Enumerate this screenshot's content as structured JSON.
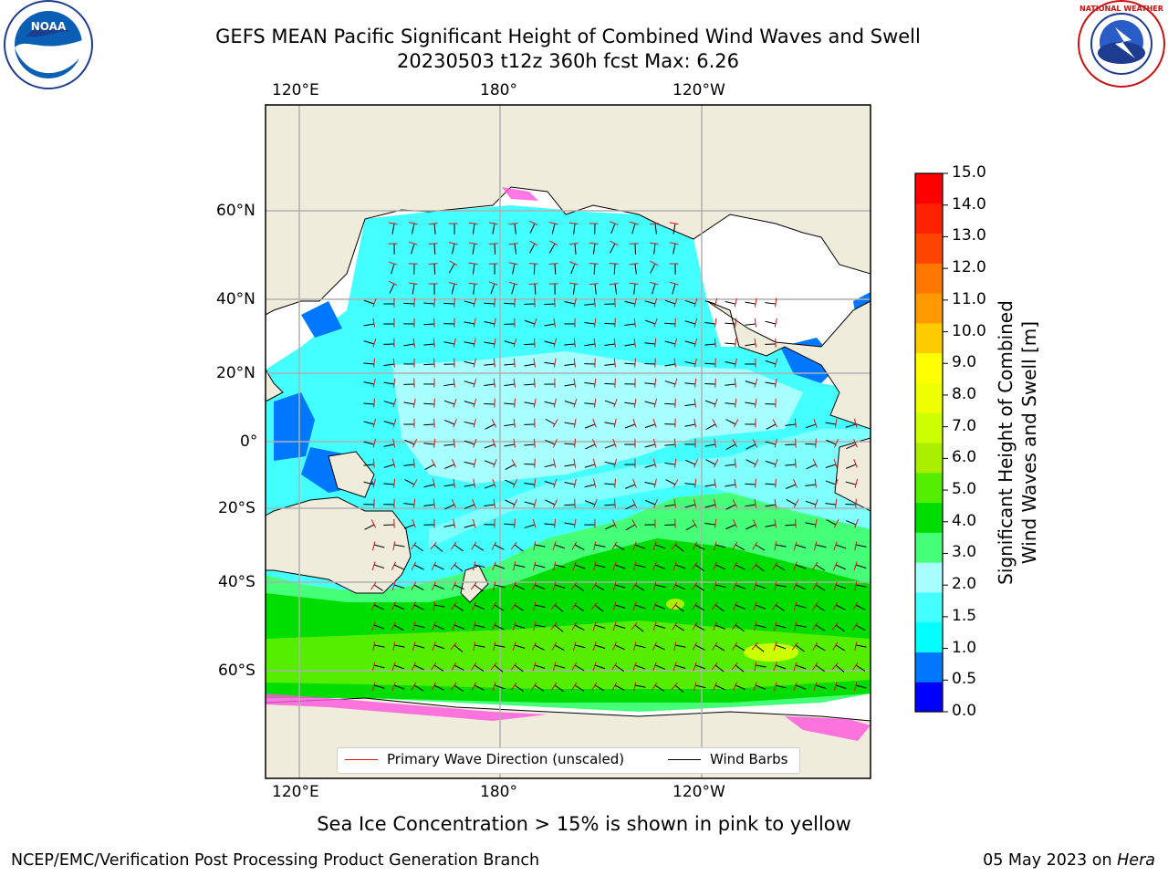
{
  "title": "GEFS MEAN Pacific Significant Height of Combined Wind Waves and Swell",
  "subtitle": "20230503 t12z 360h fcst   Max: 6.26",
  "logos": {
    "left": "NOAA",
    "right": "NATIONAL WEATHER SERVICE"
  },
  "map": {
    "lon_ticks_top": [
      "120°E",
      "180°",
      "120°W"
    ],
    "lon_ticks_bottom": [
      "120°E",
      "180°",
      "120°W"
    ],
    "lat_ticks": [
      "60°N",
      "40°N",
      "20°N",
      "0°",
      "20°S",
      "40°S",
      "60°S"
    ],
    "grid": true,
    "land_color": "#efecdc",
    "ocean_background": "#ffffff"
  },
  "legend": {
    "items": [
      {
        "label": "Primary Wave Direction (unscaled)",
        "color": "#e01010"
      },
      {
        "label": "Wind Barbs",
        "color": "#000000"
      }
    ]
  },
  "colorbar": {
    "label_line1": "Significant Height of Combined",
    "label_line2": "Wind Waves and Swell [m]",
    "ticks": [
      "15.0",
      "14.0",
      "13.0",
      "12.0",
      "11.0",
      "10.0",
      "9.0",
      "8.0",
      "7.0",
      "6.0",
      "5.0",
      "4.0",
      "3.0",
      "2.0",
      "1.5",
      "1.0",
      "0.5",
      "0.0"
    ],
    "colors_bottom_to_top": [
      "#0000ff",
      "#0077ff",
      "#00ffff",
      "#44ffff",
      "#a8ffff",
      "#44ff77",
      "#00dd00",
      "#55ee00",
      "#aaee00",
      "#ccff00",
      "#eeff00",
      "#ffff00",
      "#ffcc00",
      "#ff9900",
      "#ff7700",
      "#ff4400",
      "#ff2200",
      "#ff0000"
    ]
  },
  "ice_note": "Sea Ice Concentration > 15% is shown in pink to yellow",
  "footer": {
    "credit": "NCEP/EMC/Verification Post Processing Product Generation Branch",
    "date": "05 May 2023 on",
    "machine": "Hera"
  }
}
